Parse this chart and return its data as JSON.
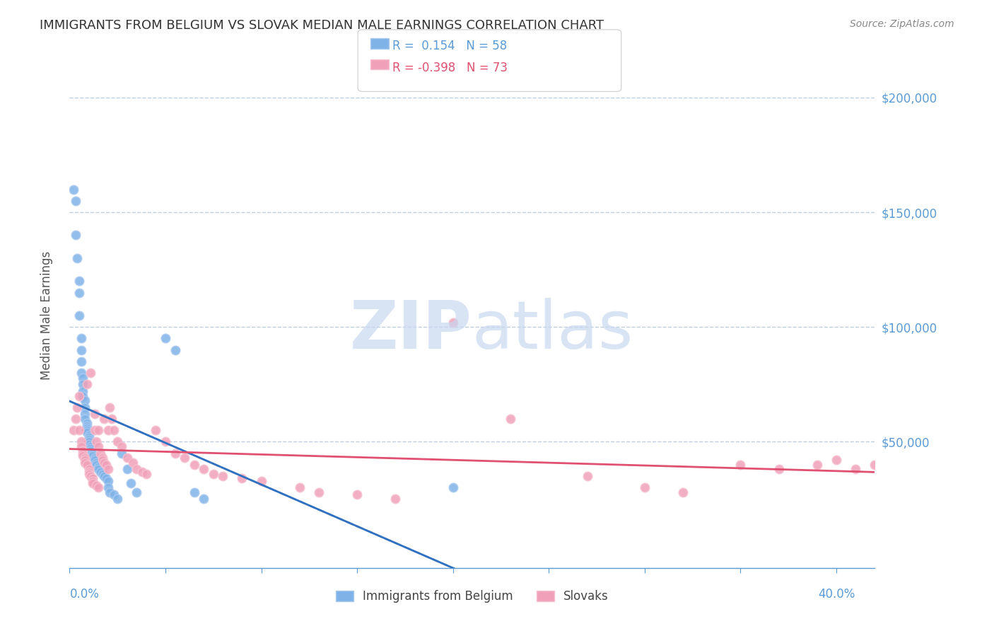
{
  "title": "IMMIGRANTS FROM BELGIUM VS SLOVAK MEDIAN MALE EARNINGS CORRELATION CHART",
  "source": "Source: ZipAtlas.com",
  "ylabel": "Median Male Earnings",
  "ytick_values": [
    50000,
    100000,
    150000,
    200000
  ],
  "belgium_R": "0.154",
  "belgium_N": "58",
  "slovak_R": "-0.398",
  "slovak_N": "73",
  "background_color": "#ffffff",
  "axis_color": "#5b9bd5",
  "grid_color": "#c0d0e0",
  "watermark_color": "#c8d8f0",
  "belgium_color": "#7fb3e8",
  "belgium_edge": "#a8c8f0",
  "slovak_color": "#f0a0b8",
  "slovak_edge": "#f5c0d0",
  "trendline_belgium_color": "#3070c0",
  "trendline_slovak_color": "#e05070",
  "trendline_dashed_color": "#a0b8d8",
  "xmin": 0.0,
  "xmax": 0.42,
  "ymin": -5000,
  "ymax": 215000,
  "belgium_scatter_x": [
    0.002,
    0.003,
    0.003,
    0.004,
    0.005,
    0.005,
    0.005,
    0.006,
    0.006,
    0.006,
    0.006,
    0.007,
    0.007,
    0.007,
    0.007,
    0.008,
    0.008,
    0.008,
    0.008,
    0.009,
    0.009,
    0.009,
    0.009,
    0.009,
    0.01,
    0.01,
    0.01,
    0.01,
    0.01,
    0.011,
    0.011,
    0.011,
    0.012,
    0.012,
    0.013,
    0.013,
    0.014,
    0.014,
    0.015,
    0.015,
    0.016,
    0.017,
    0.018,
    0.019,
    0.02,
    0.02,
    0.021,
    0.023,
    0.025,
    0.027,
    0.03,
    0.032,
    0.035,
    0.05,
    0.055,
    0.065,
    0.07,
    0.2
  ],
  "belgium_scatter_y": [
    160000,
    155000,
    140000,
    130000,
    120000,
    115000,
    105000,
    95000,
    90000,
    85000,
    80000,
    78000,
    75000,
    72000,
    70000,
    68000,
    65000,
    62000,
    60000,
    58000,
    57000,
    56000,
    55000,
    54000,
    53000,
    52000,
    51000,
    50000,
    49000,
    48000,
    47000,
    46000,
    45000,
    44000,
    43000,
    42000,
    41000,
    40000,
    39000,
    38000,
    37000,
    36000,
    35000,
    34000,
    33000,
    30000,
    28000,
    27000,
    25000,
    45000,
    38000,
    32000,
    28000,
    95000,
    90000,
    28000,
    25000,
    30000
  ],
  "slovak_scatter_x": [
    0.002,
    0.003,
    0.004,
    0.005,
    0.005,
    0.006,
    0.006,
    0.007,
    0.007,
    0.007,
    0.008,
    0.008,
    0.008,
    0.009,
    0.009,
    0.01,
    0.01,
    0.01,
    0.011,
    0.011,
    0.012,
    0.012,
    0.012,
    0.013,
    0.013,
    0.014,
    0.014,
    0.015,
    0.015,
    0.015,
    0.016,
    0.017,
    0.017,
    0.018,
    0.018,
    0.019,
    0.02,
    0.02,
    0.021,
    0.022,
    0.023,
    0.025,
    0.027,
    0.03,
    0.033,
    0.035,
    0.038,
    0.04,
    0.045,
    0.05,
    0.055,
    0.06,
    0.065,
    0.07,
    0.075,
    0.08,
    0.09,
    0.1,
    0.12,
    0.13,
    0.15,
    0.17,
    0.2,
    0.23,
    0.27,
    0.3,
    0.32,
    0.35,
    0.37,
    0.39,
    0.4,
    0.41,
    0.42
  ],
  "slovak_scatter_y": [
    55000,
    60000,
    65000,
    70000,
    55000,
    50000,
    48000,
    46000,
    45000,
    44000,
    43000,
    42000,
    41000,
    40000,
    75000,
    38000,
    37000,
    36000,
    35000,
    80000,
    34000,
    33000,
    32000,
    62000,
    55000,
    31000,
    50000,
    30000,
    55000,
    48000,
    45000,
    43000,
    42000,
    60000,
    41000,
    40000,
    55000,
    38000,
    65000,
    60000,
    55000,
    50000,
    48000,
    43000,
    41000,
    38000,
    37000,
    36000,
    55000,
    50000,
    45000,
    43000,
    40000,
    38000,
    36000,
    35000,
    34000,
    33000,
    30000,
    28000,
    27000,
    25000,
    102000,
    60000,
    35000,
    30000,
    28000,
    40000,
    38000,
    40000,
    42000,
    38000,
    40000
  ]
}
